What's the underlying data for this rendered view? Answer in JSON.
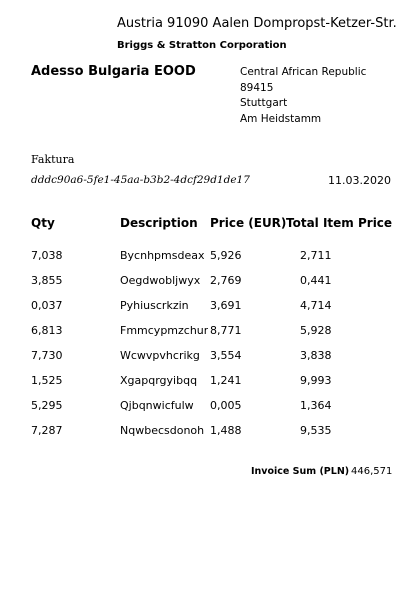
{
  "sender": {
    "address": "Austria 91090 Aalen Dompropst-Ketzer-Str.",
    "company": "Briggs & Stratton Corporation"
  },
  "recipient": {
    "name": "Adesso Bulgaria EOOD",
    "lines": [
      "Central African Republic",
      "89415",
      "Stuttgart",
      "Am Heidstamm"
    ]
  },
  "document": {
    "type": "Faktura",
    "id": "dddc90a6-5fe1-45aa-b3b2-4dcf29d1de17",
    "date": "11.03.2020"
  },
  "table": {
    "headers": {
      "qty": "Qty",
      "description": "Description",
      "price": "Price (EUR)",
      "total": "Total Item Price"
    },
    "rows": [
      {
        "qty": "7,038",
        "description": "Bycnhpmsdeax",
        "price": "5,926",
        "total": "2,711"
      },
      {
        "qty": "3,855",
        "description": "Oegdwobljwyx",
        "price": "2,769",
        "total": "0,441"
      },
      {
        "qty": "0,037",
        "description": "Pyhiuscrkzin",
        "price": "3,691",
        "total": "4,714"
      },
      {
        "qty": "6,813",
        "description": "Fmmcypmzchur",
        "price": "8,771",
        "total": "5,928"
      },
      {
        "qty": "7,730",
        "description": "Wcwvpvhcrikg",
        "price": "3,554",
        "total": "3,838"
      },
      {
        "qty": "1,525",
        "description": "Xgapqrgyibqq",
        "price": "1,241",
        "total": "9,993"
      },
      {
        "qty": "5,295",
        "description": "Qjbqnwicfulw",
        "price": "0,005",
        "total": "1,364"
      },
      {
        "qty": "7,287",
        "description": "Nqwbecsdonoh",
        "price": "1,488",
        "total": "9,535"
      }
    ]
  },
  "summary": {
    "label": "Invoice Sum (PLN)",
    "value": "446,571"
  }
}
